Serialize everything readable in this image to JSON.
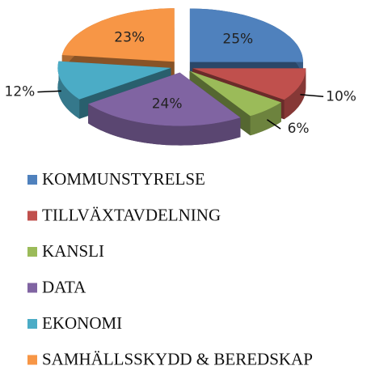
{
  "chart_data": {
    "type": "pie",
    "categories": [
      "KOMMUNSTYRELSE",
      "TILLVÄXTAVDELNING",
      "KANSLI",
      "DATA",
      "EKONOMI",
      "SAMHÄLLSSKYDD & BEREDSKAP"
    ],
    "values": [
      25,
      10,
      6,
      24,
      12,
      23
    ],
    "value_labels": [
      "25%",
      "10%",
      "6%",
      "24%",
      "12%",
      "23%"
    ],
    "colors": [
      "#4f81bd",
      "#c0504d",
      "#9bbb59",
      "#8064a2",
      "#4bacc6",
      "#f79646"
    ],
    "legend": "bottom"
  }
}
